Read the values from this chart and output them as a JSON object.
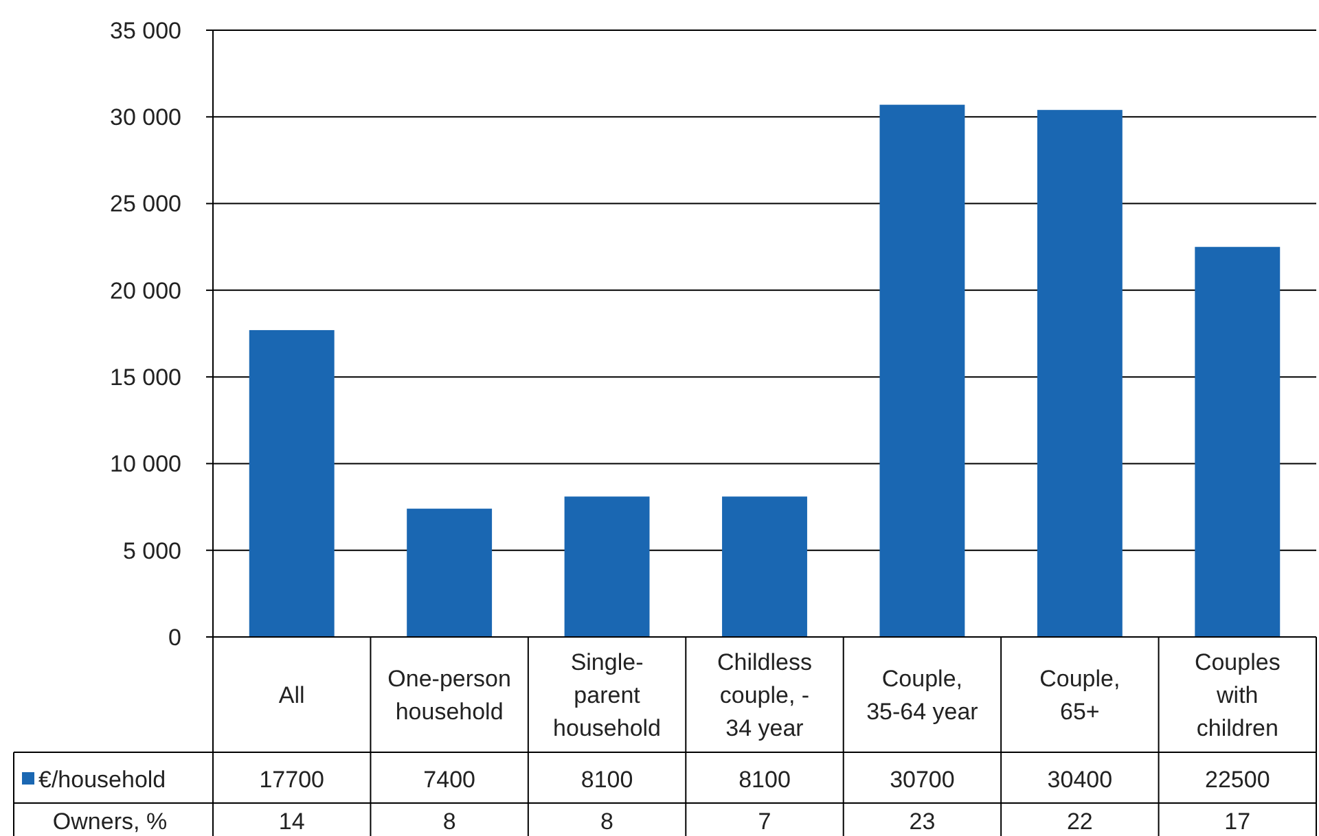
{
  "chart_data": {
    "type": "bar",
    "categories": [
      "All",
      "One-person household",
      "Single-parent household",
      "Childless couple, -34 year",
      "Couple, 35-64 year",
      "Couple, 65+",
      "Couples with children"
    ],
    "series": [
      {
        "name": "€/household",
        "color": "#1a67b2",
        "values": [
          17700,
          7400,
          8100,
          8100,
          30700,
          30400,
          22500
        ]
      }
    ],
    "annotations": [
      "Owners, %",
      "14",
      "8",
      "8",
      "7",
      "23",
      "22",
      "17"
    ],
    "ylim": [
      0,
      35000
    ],
    "yticks": [
      {
        "value": 0,
        "label": "0"
      },
      {
        "value": 5000,
        "label": "5 000"
      },
      {
        "value": 10000,
        "label": "10 000"
      },
      {
        "value": 15000,
        "label": "15 000"
      },
      {
        "value": 20000,
        "label": "20 000"
      },
      {
        "value": 25000,
        "label": "25 000"
      },
      {
        "value": 30000,
        "label": "30 000"
      },
      {
        "value": 35000,
        "label": "35 000"
      }
    ],
    "grid": "y",
    "legend": "bottom",
    "data_labels": true
  }
}
